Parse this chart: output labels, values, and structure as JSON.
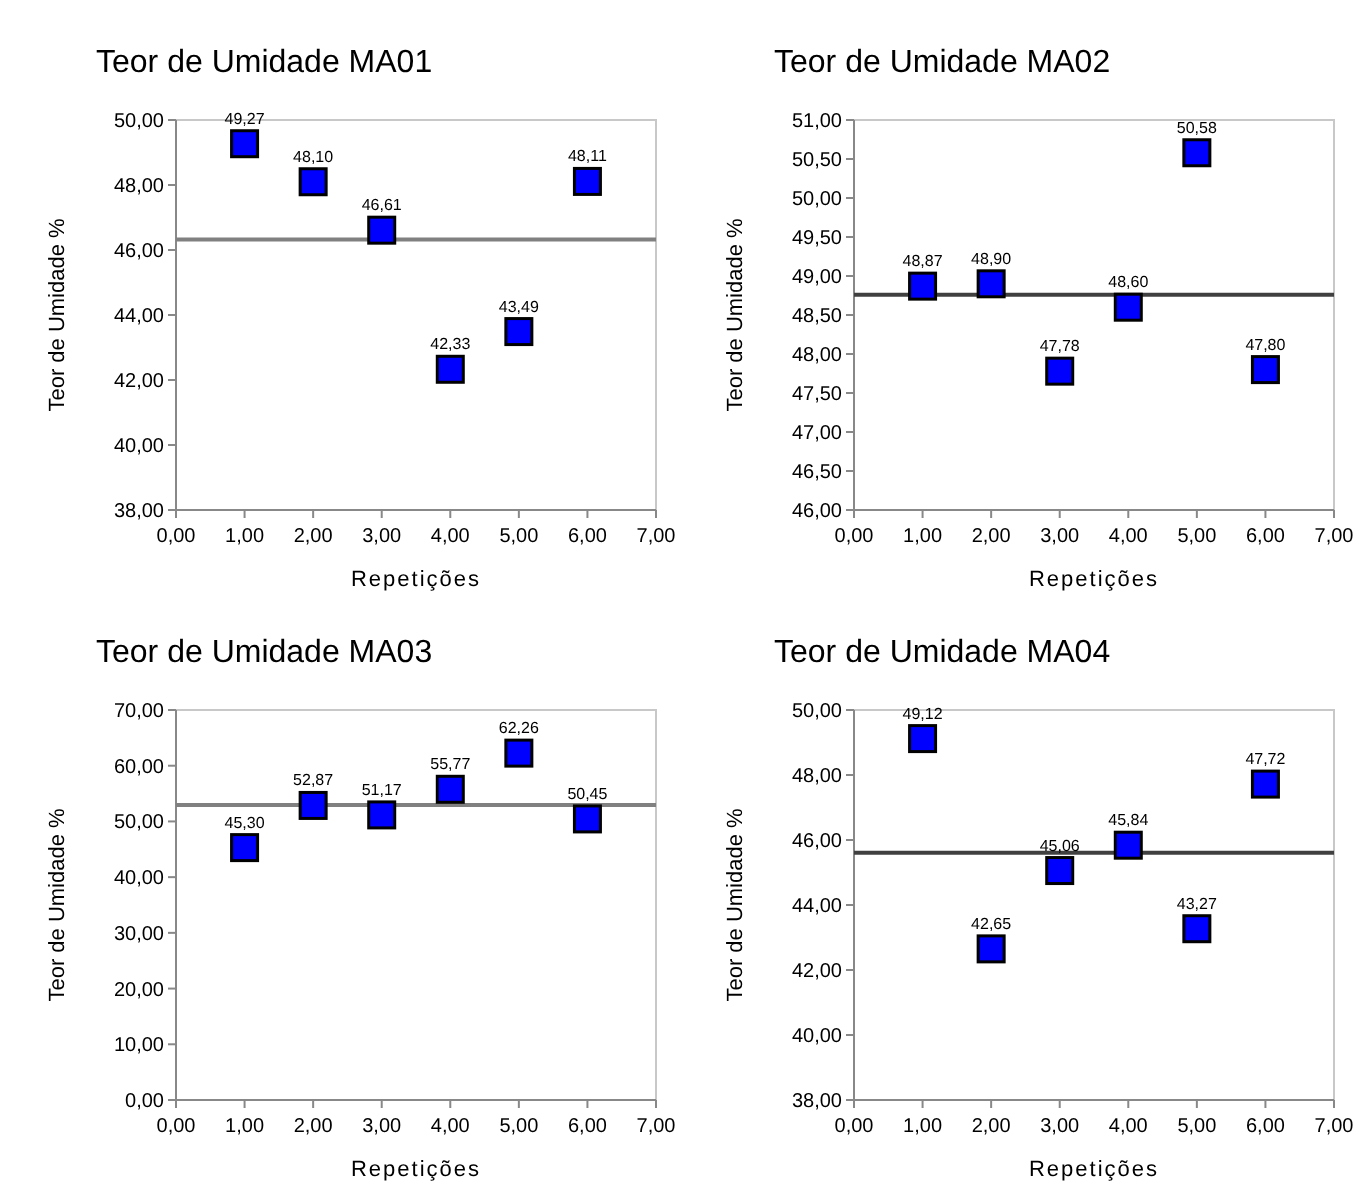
{
  "chart_data": [
    {
      "type": "scatter",
      "title": "Teor de Umidade MA01",
      "xlabel": "Repetições",
      "ylabel": "Teor de Umidade %",
      "x": [
        1,
        2,
        3,
        4,
        5,
        6
      ],
      "values": [
        49.27,
        48.1,
        46.61,
        42.33,
        43.49,
        48.11
      ],
      "value_labels": [
        "49,27",
        "48,10",
        "46,61",
        "42,33",
        "43,49",
        "48,11"
      ],
      "color": "#0000ff",
      "marker": "square",
      "xlim": [
        0,
        7
      ],
      "xticks": [
        {
          "value": 0,
          "label": "0,00"
        },
        {
          "value": 1,
          "label": "1,00"
        },
        {
          "value": 2,
          "label": "2,00"
        },
        {
          "value": 3,
          "label": "3,00"
        },
        {
          "value": 4,
          "label": "4,00"
        },
        {
          "value": 5,
          "label": "5,00"
        },
        {
          "value": 6,
          "label": "6,00"
        },
        {
          "value": 7,
          "label": "7,00"
        }
      ],
      "ylim": [
        38,
        50
      ],
      "yticks": [
        {
          "value": 38,
          "label": "38,00"
        },
        {
          "value": 40,
          "label": "40,00"
        },
        {
          "value": 42,
          "label": "42,00"
        },
        {
          "value": 44,
          "label": "44,00"
        },
        {
          "value": 46,
          "label": "46,00"
        },
        {
          "value": 48,
          "label": "48,00"
        },
        {
          "value": 50,
          "label": "50,00"
        }
      ],
      "ref_lines": [
        {
          "axis": "y",
          "value": 46.32,
          "color": "#808080"
        }
      ],
      "grid": false
    },
    {
      "type": "scatter",
      "title": "Teor de Umidade MA02",
      "xlabel": "Repetições",
      "ylabel": "Teor de Umidade %",
      "x": [
        1,
        2,
        3,
        4,
        5,
        6
      ],
      "values": [
        48.87,
        48.9,
        47.78,
        48.6,
        50.58,
        47.8
      ],
      "value_labels": [
        "48,87",
        "48,90",
        "47,78",
        "48,60",
        "50,58",
        "47,80"
      ],
      "color": "#0000ff",
      "marker": "square",
      "xlim": [
        0,
        7
      ],
      "xticks": [
        {
          "value": 0,
          "label": "0,00"
        },
        {
          "value": 1,
          "label": "1,00"
        },
        {
          "value": 2,
          "label": "2,00"
        },
        {
          "value": 3,
          "label": "3,00"
        },
        {
          "value": 4,
          "label": "4,00"
        },
        {
          "value": 5,
          "label": "5,00"
        },
        {
          "value": 6,
          "label": "6,00"
        },
        {
          "value": 7,
          "label": "7,00"
        }
      ],
      "ylim": [
        46,
        51
      ],
      "yticks": [
        {
          "value": 46,
          "label": "46,00"
        },
        {
          "value": 46.5,
          "label": "46,50"
        },
        {
          "value": 47,
          "label": "47,00"
        },
        {
          "value": 47.5,
          "label": "47,50"
        },
        {
          "value": 48,
          "label": "48,00"
        },
        {
          "value": 48.5,
          "label": "48,50"
        },
        {
          "value": 49,
          "label": "49,00"
        },
        {
          "value": 49.5,
          "label": "49,50"
        },
        {
          "value": 50,
          "label": "50,00"
        },
        {
          "value": 50.5,
          "label": "50,50"
        },
        {
          "value": 51,
          "label": "51,00"
        }
      ],
      "ref_lines": [
        {
          "axis": "y",
          "value": 48.76,
          "color": "#404040"
        }
      ],
      "grid": false
    },
    {
      "type": "scatter",
      "title": "Teor de Umidade MA03",
      "xlabel": "Repetições",
      "ylabel": "Teor de Umidade %",
      "x": [
        1,
        2,
        3,
        4,
        5,
        6
      ],
      "values": [
        45.3,
        52.87,
        51.17,
        55.77,
        62.26,
        50.45
      ],
      "value_labels": [
        "45,30",
        "52,87",
        "51,17",
        "55,77",
        "62,26",
        "50,45"
      ],
      "color": "#0000ff",
      "marker": "square",
      "xlim": [
        0,
        7
      ],
      "xticks": [
        {
          "value": 0,
          "label": "0,00"
        },
        {
          "value": 1,
          "label": "1,00"
        },
        {
          "value": 2,
          "label": "2,00"
        },
        {
          "value": 3,
          "label": "3,00"
        },
        {
          "value": 4,
          "label": "4,00"
        },
        {
          "value": 5,
          "label": "5,00"
        },
        {
          "value": 6,
          "label": "6,00"
        },
        {
          "value": 7,
          "label": "7,00"
        }
      ],
      "ylim": [
        0,
        70
      ],
      "yticks": [
        {
          "value": 0,
          "label": "0,00"
        },
        {
          "value": 10,
          "label": "10,00"
        },
        {
          "value": 20,
          "label": "20,00"
        },
        {
          "value": 30,
          "label": "30,00"
        },
        {
          "value": 40,
          "label": "40,00"
        },
        {
          "value": 50,
          "label": "50,00"
        },
        {
          "value": 60,
          "label": "60,00"
        },
        {
          "value": 70,
          "label": "70,00"
        }
      ],
      "ref_lines": [
        {
          "axis": "y",
          "value": 52.97,
          "color": "#808080"
        }
      ],
      "grid": false
    },
    {
      "type": "scatter",
      "title": "Teor de Umidade MA04",
      "xlabel": "Repetições",
      "ylabel": "Teor de Umidade %",
      "x": [
        1,
        2,
        3,
        4,
        5,
        6
      ],
      "values": [
        49.12,
        42.65,
        45.06,
        45.84,
        43.27,
        47.72
      ],
      "value_labels": [
        "49,12",
        "42,65",
        "45,06",
        "45,84",
        "43,27",
        "47,72"
      ],
      "color": "#0000ff",
      "marker": "square",
      "xlim": [
        0,
        7
      ],
      "xticks": [
        {
          "value": 0,
          "label": "0,00"
        },
        {
          "value": 1,
          "label": "1,00"
        },
        {
          "value": 2,
          "label": "2,00"
        },
        {
          "value": 3,
          "label": "3,00"
        },
        {
          "value": 4,
          "label": "4,00"
        },
        {
          "value": 5,
          "label": "5,00"
        },
        {
          "value": 6,
          "label": "6,00"
        },
        {
          "value": 7,
          "label": "7,00"
        }
      ],
      "ylim": [
        38,
        50
      ],
      "yticks": [
        {
          "value": 38,
          "label": "38,00"
        },
        {
          "value": 40,
          "label": "40,00"
        },
        {
          "value": 42,
          "label": "42,00"
        },
        {
          "value": 44,
          "label": "44,00"
        },
        {
          "value": 46,
          "label": "46,00"
        },
        {
          "value": 48,
          "label": "48,00"
        },
        {
          "value": 50,
          "label": "50,00"
        }
      ],
      "ref_lines": [
        {
          "axis": "y",
          "value": 45.61,
          "color": "#404040"
        }
      ],
      "grid": false
    }
  ]
}
